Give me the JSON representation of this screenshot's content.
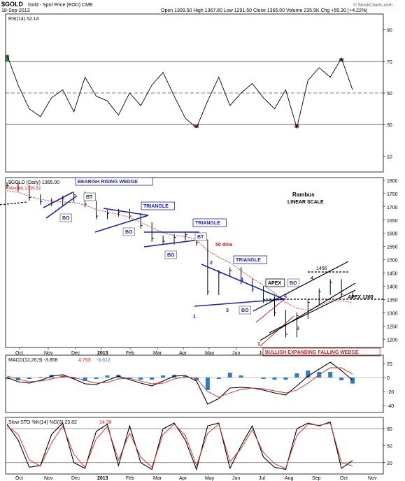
{
  "header": {
    "symbol": "$GOLD",
    "description": "Gold - Spot Price (EOD)",
    "exchange": "CME",
    "date": "18-Sep-2013",
    "ohlc": "Open 1309.50  High 1367.80  Low 1291.50  Close 1365.00  Volume 235.5K  Chg +55.30 (+4.22%)",
    "credit": "© StockCharts.com"
  },
  "colors": {
    "price_bar": "#000000",
    "ma50": "#e0241c",
    "pattern_line": "#1f1fb4",
    "rsi_overbought_fill": "#3c7a3c",
    "rsi_oversold_fill": "#8c4a4a",
    "macd_hist": "#2d7bc4",
    "annotation_red": "#d01515",
    "label_box": "#1f1fb4"
  },
  "chart_data": [
    {
      "type": "line",
      "title": "RSI(14) 52.14",
      "legend": "RSI(14) 52.14",
      "yticks": [
        10,
        30,
        50,
        70,
        90
      ],
      "ylim": [
        0,
        100
      ],
      "reference_lines": [
        30,
        50,
        70
      ],
      "x": [
        0,
        8,
        16,
        24,
        32,
        40,
        48,
        56,
        64,
        72,
        80,
        88,
        96,
        104,
        112,
        120,
        128,
        136,
        144,
        152,
        160,
        168,
        176,
        184,
        192,
        200,
        208,
        216,
        224,
        232,
        240,
        248
      ],
      "values": [
        74,
        55,
        40,
        35,
        47,
        52,
        38,
        60,
        48,
        45,
        36,
        50,
        42,
        55,
        63,
        48,
        34,
        28,
        45,
        60,
        42,
        50,
        56,
        47,
        40,
        52,
        28,
        58,
        66,
        60,
        72,
        52
      ]
    },
    {
      "type": "bar",
      "title": "$GOLD (Daily) 1365.00",
      "legend": [
        "$GOLD (Daily) 1365.00",
        "MA(50) 1339.52"
      ],
      "yticks": [
        1200,
        1250,
        1300,
        1350,
        1400,
        1450,
        1500,
        1550,
        1600,
        1650,
        1700,
        1750,
        1800
      ],
      "ylim": [
        1170,
        1810
      ],
      "xticks": [
        "Oct",
        "Nov",
        "Dec",
        "2013",
        "Feb",
        "Mar",
        "Apr",
        "May",
        "Jun",
        "Jul",
        "Aug",
        "Sep",
        "Oct",
        "Nov"
      ],
      "x": [
        0,
        8,
        16,
        24,
        32,
        40,
        48,
        56,
        64,
        72,
        80,
        88,
        96,
        104,
        112,
        120,
        128,
        136,
        144,
        152,
        160,
        168,
        176,
        184,
        192,
        200,
        208,
        216,
        224,
        232,
        240,
        248
      ],
      "close": [
        1780,
        1770,
        1735,
        1720,
        1715,
        1730,
        1745,
        1710,
        1665,
        1675,
        1680,
        1665,
        1630,
        1580,
        1570,
        1585,
        1595,
        1565,
        1380,
        1450,
        1460,
        1420,
        1390,
        1350,
        1300,
        1220,
        1290,
        1340,
        1380,
        1415,
        1370,
        1365
      ],
      "ma50": [
        1760,
        1755,
        1740,
        1728,
        1722,
        1718,
        1716,
        1706,
        1690,
        1680,
        1672,
        1660,
        1642,
        1622,
        1602,
        1592,
        1588,
        1576,
        1535,
        1510,
        1490,
        1460,
        1430,
        1405,
        1375,
        1340,
        1318,
        1310,
        1325,
        1345,
        1345,
        1339.52
      ],
      "annotations": {
        "title": "Rambus",
        "scale_note": "LINEAR SCALE",
        "pattern_1": "BEARISH RISING WEDGE",
        "pattern_2": "TRIANGLE",
        "pattern_3": "TRIANGLE",
        "pattern_4": "TRIANGLE",
        "pattern_5": "BULLISH EXPANDING FALLING WEDGE",
        "ma_label": "50 dma",
        "apex_label": "APEX",
        "apex_value": "APEX 1360",
        "level_1456": "1456",
        "bt": "BT",
        "bo": "BO",
        "n1": "1",
        "n2": "2",
        "n3": "3",
        "n4": "4"
      }
    },
    {
      "type": "line",
      "title": "MACD(12,26,9)",
      "legend": [
        "MACD(12,26,9) -3.858",
        "4.753",
        "-8.612"
      ],
      "yticks": [
        -40,
        -20,
        0,
        20
      ],
      "ylim": [
        -50,
        32
      ],
      "x": [
        0,
        8,
        16,
        24,
        32,
        40,
        48,
        56,
        64,
        72,
        80,
        88,
        96,
        104,
        112,
        120,
        128,
        136,
        144,
        152,
        160,
        168,
        176,
        184,
        192,
        200,
        208,
        216,
        224,
        232,
        240,
        248
      ],
      "macd": [
        0,
        -6,
        -8,
        -4,
        2,
        4,
        -2,
        -9,
        -10,
        -4,
        2,
        -3,
        -8,
        -12,
        -5,
        2,
        3,
        -5,
        -38,
        -30,
        -15,
        -14,
        -15,
        -18,
        -22,
        -25,
        -12,
        2,
        12,
        22,
        10,
        -3.858
      ],
      "signal": [
        2,
        -2,
        -6,
        -5,
        -2,
        2,
        0,
        -4,
        -8,
        -7,
        -2,
        -1,
        -5,
        -9,
        -8,
        -2,
        1,
        -1,
        -20,
        -28,
        -22,
        -17,
        -15,
        -16,
        -19,
        -22,
        -18,
        -8,
        4,
        14,
        14,
        4.753
      ],
      "hist": [
        -2,
        -4,
        -2,
        1,
        4,
        2,
        -2,
        -5,
        -2,
        3,
        4,
        -2,
        -3,
        -3,
        3,
        4,
        2,
        -4,
        -18,
        -2,
        7,
        3,
        0,
        -2,
        -3,
        -3,
        6,
        10,
        8,
        8,
        -4,
        -8.612
      ]
    },
    {
      "type": "line",
      "title": "Slow STO %K(14) %D(3)",
      "legend": [
        "Slow STO %K(14) %D(3) 23.82",
        "14.38"
      ],
      "yticks": [
        20,
        50,
        80
      ],
      "ylim": [
        0,
        100
      ],
      "reference_lines": [
        20,
        80
      ],
      "x": [
        0,
        8,
        16,
        24,
        32,
        40,
        48,
        56,
        64,
        72,
        80,
        88,
        96,
        104,
        112,
        120,
        128,
        136,
        144,
        152,
        160,
        168,
        176,
        184,
        192,
        200,
        208,
        216,
        224,
        232,
        240,
        248
      ],
      "k": [
        88,
        60,
        12,
        15,
        70,
        90,
        20,
        10,
        75,
        88,
        15,
        85,
        20,
        8,
        80,
        90,
        60,
        8,
        85,
        90,
        10,
        50,
        85,
        30,
        12,
        8,
        80,
        90,
        85,
        92,
        10,
        23.82
      ],
      "d": [
        85,
        70,
        25,
        14,
        55,
        85,
        35,
        12,
        62,
        84,
        25,
        72,
        30,
        12,
        70,
        88,
        68,
        15,
        72,
        88,
        22,
        45,
        78,
        38,
        18,
        10,
        68,
        88,
        86,
        90,
        20,
        14.38
      ]
    }
  ]
}
